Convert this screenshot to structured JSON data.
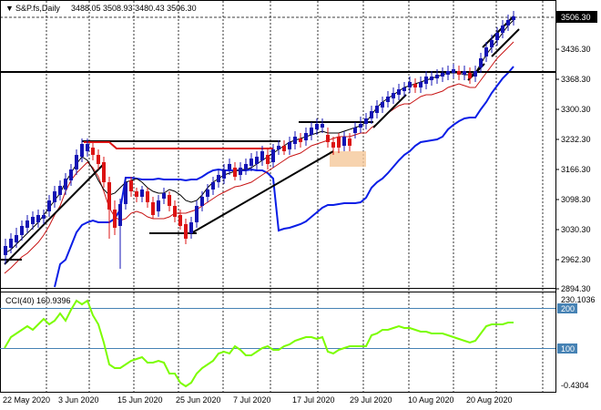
{
  "window": {
    "title": "S&P.fs,Daily",
    "ohlc": "3488.05 3508.93 3480.43 3506.30",
    "collapse_icon": "triangle-down-icon"
  },
  "price_axis": {
    "ticks": [
      "3436.30",
      "3368.30",
      "3300.30",
      "3232.30",
      "3166.30",
      "3098.30",
      "3030.30",
      "2962.30",
      "2894.30"
    ],
    "current_price": "3506.30"
  },
  "indicator": {
    "label": "CCI(40) 160.9396",
    "axis_top": "230.1036",
    "axis_bottom": "-0.4304",
    "level_200": "200",
    "level_100": "100",
    "line_color": "#7cfc00",
    "level_color": "#4682b4"
  },
  "time_axis": {
    "labels": [
      "22 May 2020",
      "3 Jun 2020",
      "15 Jun 2020",
      "25 Jun 2020",
      "7 Jul 2020",
      "17 Jul 2020",
      "29 Jul 2020",
      "10 Aug 2020",
      "20 Aug 2020"
    ]
  },
  "colors": {
    "bull": "#1414b4",
    "bear": "#dc1414",
    "ma_fast": "#000000",
    "ma_mid": "#c81414",
    "ma_slow": "#0a1ee6",
    "highlight": "#f5c89a"
  }
}
